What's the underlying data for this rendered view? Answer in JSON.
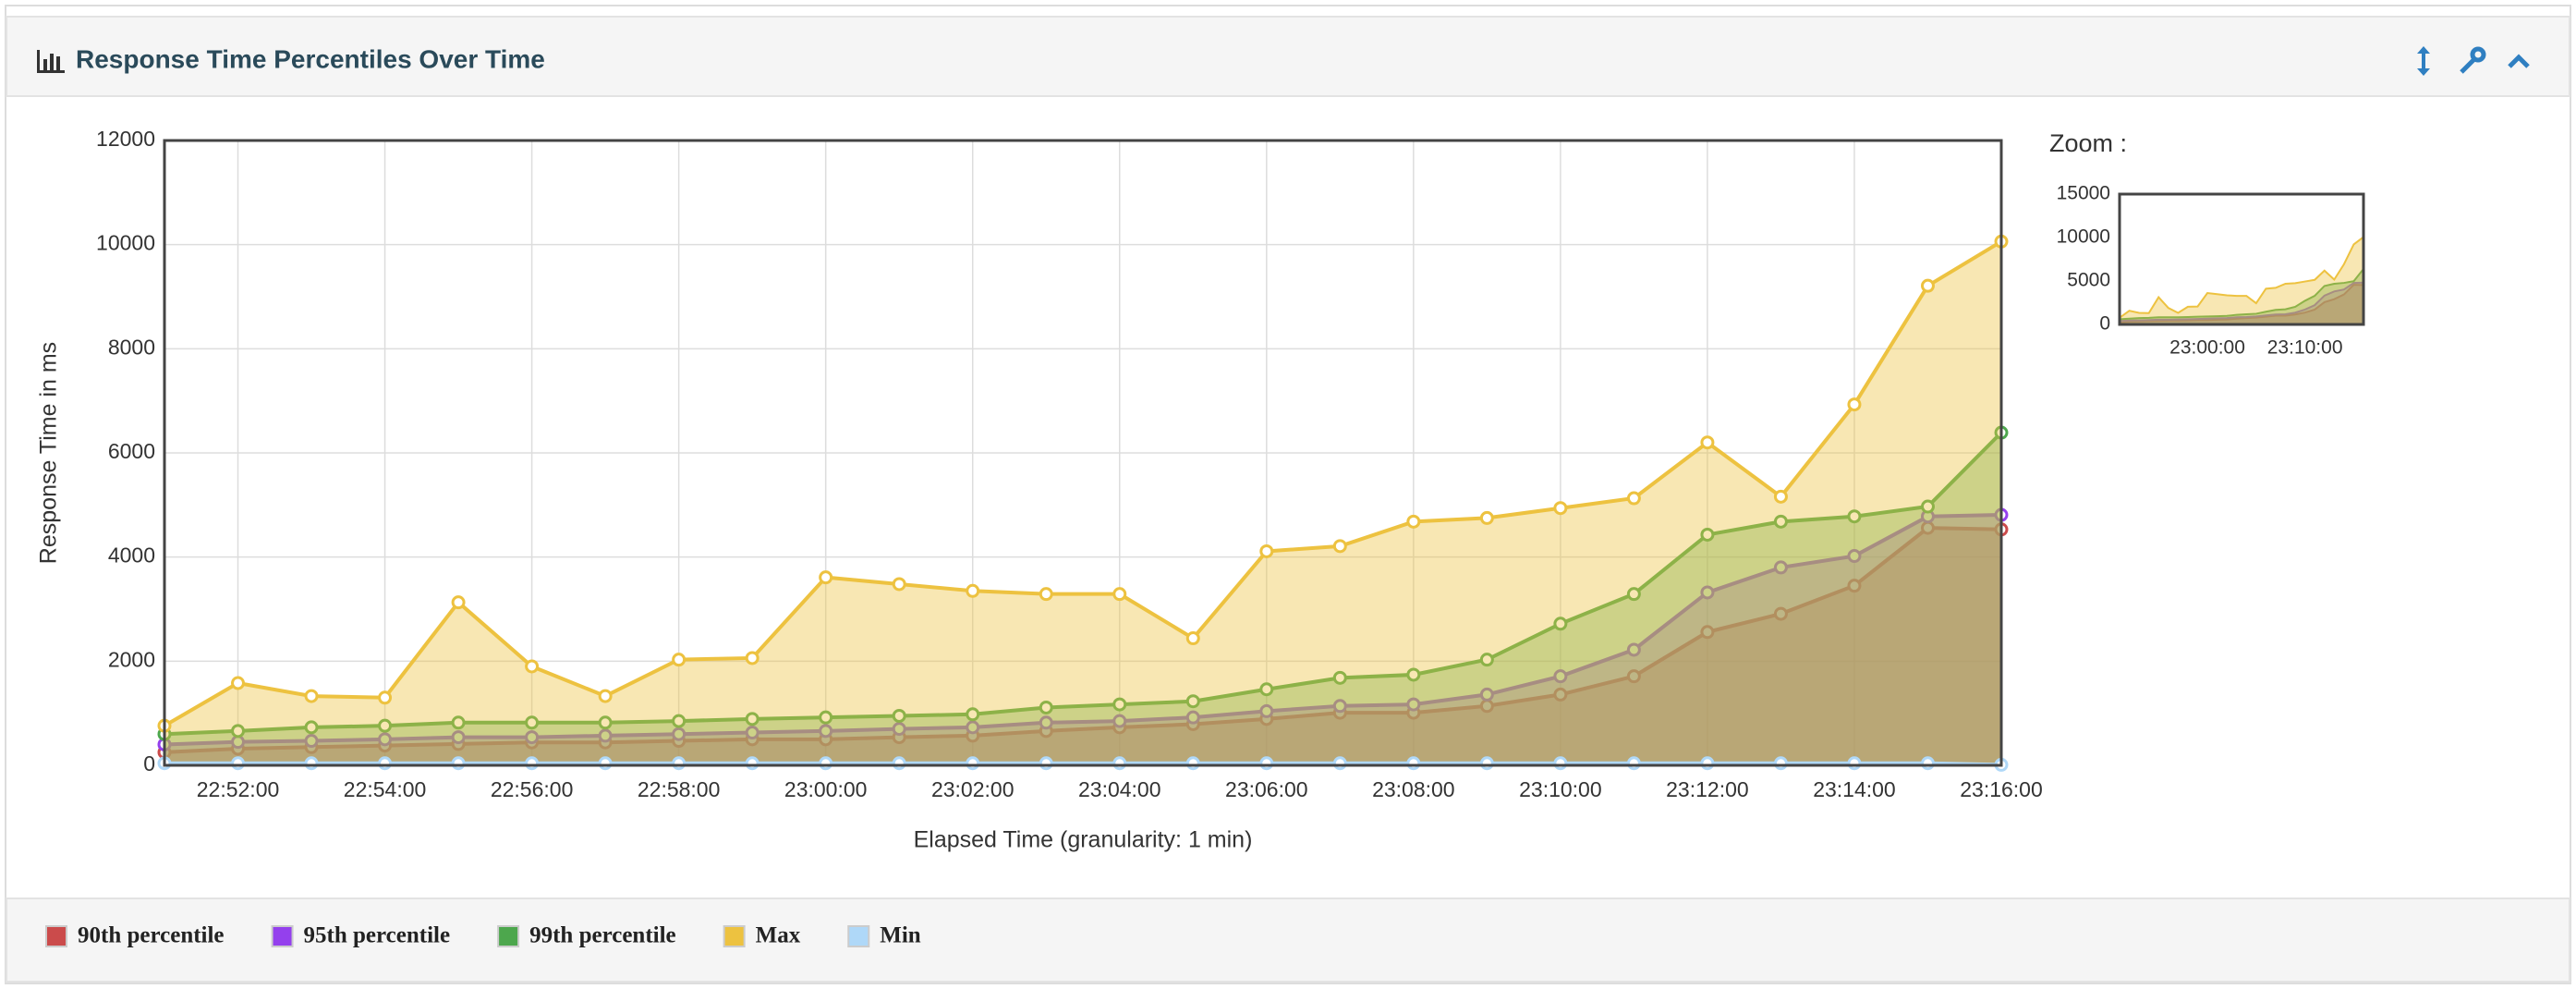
{
  "panel": {
    "title": "Response Time Percentiles Over Time"
  },
  "chart_data": [
    {
      "type": "area-line",
      "y_label": "Response Time in ms",
      "x_label": "Elapsed Time (granularity: 1 min)",
      "categories": [
        null,
        "22:52:00",
        null,
        "22:54:00",
        null,
        "22:56:00",
        null,
        "22:58:00",
        null,
        "23:00:00",
        null,
        "23:02:00",
        null,
        "23:04:00",
        null,
        "23:06:00",
        null,
        "23:08:00",
        null,
        "23:10:00",
        null,
        "23:12:00",
        null,
        "23:14:00",
        null,
        "23:16:00"
      ],
      "ylim": [
        0,
        12000
      ],
      "yticks": [
        0,
        2000,
        4000,
        6000,
        8000,
        10000,
        12000
      ],
      "grid": true,
      "series": [
        {
          "name": "90th percentile",
          "color": "#cb4b4b",
          "values": [
            250,
            320,
            350,
            380,
            410,
            440,
            440,
            470,
            500,
            500,
            540,
            570,
            660,
            730,
            790,
            890,
            1010,
            1010,
            1140,
            1360,
            1710,
            2560,
            2910,
            3450,
            4560,
            4530
          ]
        },
        {
          "name": "95th percentile",
          "color": "#9440ed",
          "values": [
            400,
            450,
            470,
            500,
            540,
            540,
            570,
            600,
            630,
            660,
            700,
            730,
            820,
            850,
            920,
            1040,
            1140,
            1170,
            1360,
            1710,
            2220,
            3320,
            3800,
            4020,
            4780,
            4810
          ]
        },
        {
          "name": "99th percentile",
          "color": "#4da74d",
          "values": [
            600,
            660,
            730,
            760,
            820,
            820,
            820,
            850,
            890,
            920,
            950,
            980,
            1110,
            1170,
            1230,
            1460,
            1680,
            1740,
            2030,
            2720,
            3290,
            4430,
            4680,
            4780,
            4970,
            6390
          ]
        },
        {
          "name": "Max",
          "color": "#edc240",
          "values": [
            760,
            1580,
            1330,
            1300,
            3130,
            1900,
            1330,
            2030,
            2060,
            3610,
            3480,
            3350,
            3290,
            3290,
            2440,
            4110,
            4210,
            4680,
            4750,
            4940,
            5130,
            6200,
            5160,
            6930,
            9210,
            10060
          ]
        },
        {
          "name": "Min",
          "color": "#afd8f8",
          "values": [
            40,
            40,
            40,
            40,
            40,
            40,
            40,
            40,
            40,
            40,
            40,
            40,
            40,
            40,
            40,
            40,
            40,
            40,
            40,
            40,
            40,
            40,
            40,
            40,
            40,
            10
          ]
        }
      ]
    },
    {
      "type": "zoom",
      "title": "Zoom :",
      "categories": [
        null,
        null,
        null,
        null,
        null,
        null,
        null,
        null,
        null,
        "23:00:00",
        null,
        null,
        null,
        null,
        null,
        null,
        null,
        null,
        null,
        "23:10:00",
        null,
        null,
        null,
        null,
        null,
        null
      ],
      "ylim": [
        0,
        15000
      ],
      "yticks": [
        0,
        5000,
        10000,
        15000
      ]
    }
  ]
}
